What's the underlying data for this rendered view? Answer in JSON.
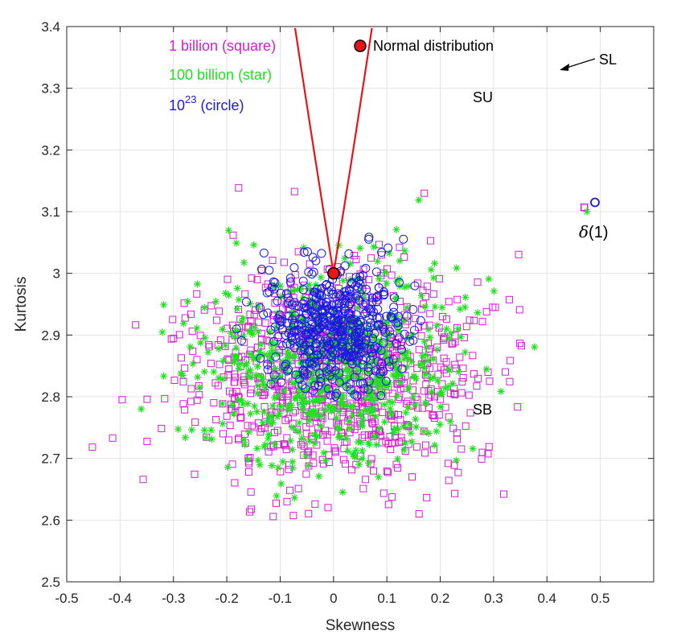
{
  "chart_data": {
    "type": "scatter",
    "xlabel": "Skewness",
    "ylabel": "Kurtosis",
    "xlim": [
      -0.5,
      0.6
    ],
    "ylim": [
      2.5,
      3.4
    ],
    "x_ticks": [
      "-0.5",
      "-0.4",
      "-0.3",
      "-0.2",
      "-0.1",
      "0",
      "0.1",
      "0.2",
      "0.3",
      "0.4",
      "0.5"
    ],
    "y_ticks": [
      "2.5",
      "2.6",
      "2.7",
      "2.8",
      "2.9",
      "3",
      "3.1",
      "3.2",
      "3.3",
      "3.4"
    ],
    "grid": true,
    "colors": {
      "square": "#d11fd1",
      "star": "#22e022",
      "circle": "#1a1adc",
      "curve": "#e8141a",
      "normal_fill": "#e8141a"
    },
    "legend": [
      {
        "label": "1 billion (square)",
        "marker": "square"
      },
      {
        "label": "100 billion (star)",
        "marker": "star"
      },
      {
        "label_base": "10",
        "label_sup": "23",
        "label_rest": " (circle)",
        "marker": "circle"
      }
    ],
    "normal_distribution": {
      "label": "Normal distribution",
      "x": 0,
      "y": 3.0
    },
    "curve": {
      "name": "SL",
      "type": "lognormal boundary",
      "sample_x_range": [
        -0.47,
        0.47
      ]
    },
    "region_labels": [
      {
        "text": "SU",
        "x": 0.29,
        "y": 3.28
      },
      {
        "text": "SB",
        "x": 0.29,
        "y": 2.79
      },
      {
        "text": "SL",
        "x": 0.53,
        "y": 3.34
      }
    ],
    "delta_annotation": {
      "symbol": "δ",
      "rest": "(1)",
      "x": 0.49,
      "y": 3.065
    },
    "special_points": [
      {
        "marker": "square",
        "x": 0.47,
        "y": 3.107
      },
      {
        "marker": "star",
        "x": 0.475,
        "y": 3.1
      },
      {
        "marker": "circle",
        "x": 0.49,
        "y": 3.115
      }
    ],
    "series": [
      {
        "name": "1 billion (square)",
        "marker": "square",
        "n_points": 900,
        "center": [
          0.0,
          2.83
        ],
        "spread": [
          0.14,
          0.09
        ]
      },
      {
        "name": "100 billion (star)",
        "marker": "star",
        "n_points": 650,
        "center": [
          0.0,
          2.84
        ],
        "spread": [
          0.12,
          0.08
        ]
      },
      {
        "name": "10^23 (circle)",
        "marker": "circle",
        "n_points": 520,
        "center": [
          0.0,
          2.91
        ],
        "spread": [
          0.065,
          0.05
        ]
      }
    ]
  }
}
